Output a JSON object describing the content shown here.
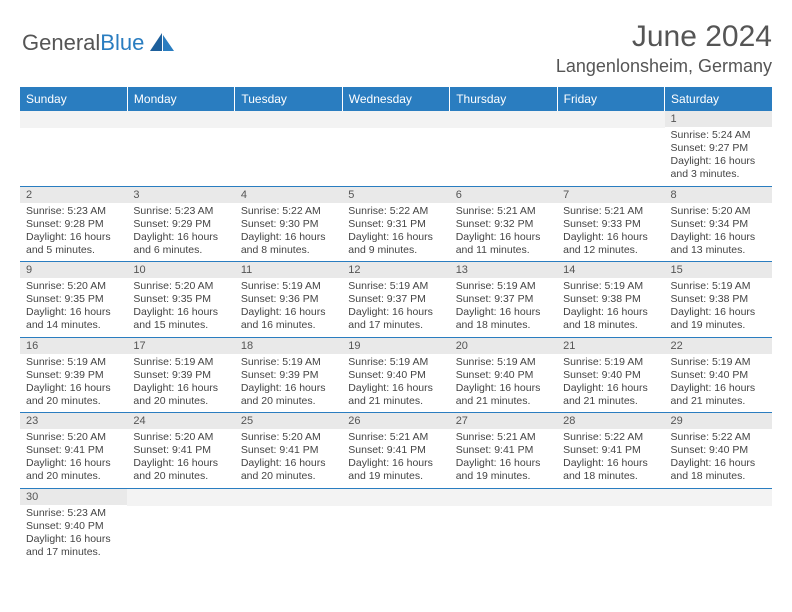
{
  "logo": {
    "text_a": "General",
    "text_b": "Blue"
  },
  "header": {
    "title": "June 2024",
    "location": "Langenlonsheim, Germany"
  },
  "columns": [
    "Sunday",
    "Monday",
    "Tuesday",
    "Wednesday",
    "Thursday",
    "Friday",
    "Saturday"
  ],
  "colors": {
    "header_bg": "#2a7dc0",
    "header_text": "#ffffff",
    "daynum_bg": "#e9e9e9",
    "row_border": "#2a7dc0",
    "body_text": "#444444"
  },
  "weeks": [
    [
      {
        "empty": true
      },
      {
        "empty": true
      },
      {
        "empty": true
      },
      {
        "empty": true
      },
      {
        "empty": true
      },
      {
        "empty": true
      },
      {
        "day": "1",
        "sunrise": "Sunrise: 5:24 AM",
        "sunset": "Sunset: 9:27 PM",
        "daylight": "Daylight: 16 hours and 3 minutes."
      }
    ],
    [
      {
        "day": "2",
        "sunrise": "Sunrise: 5:23 AM",
        "sunset": "Sunset: 9:28 PM",
        "daylight": "Daylight: 16 hours and 5 minutes."
      },
      {
        "day": "3",
        "sunrise": "Sunrise: 5:23 AM",
        "sunset": "Sunset: 9:29 PM",
        "daylight": "Daylight: 16 hours and 6 minutes."
      },
      {
        "day": "4",
        "sunrise": "Sunrise: 5:22 AM",
        "sunset": "Sunset: 9:30 PM",
        "daylight": "Daylight: 16 hours and 8 minutes."
      },
      {
        "day": "5",
        "sunrise": "Sunrise: 5:22 AM",
        "sunset": "Sunset: 9:31 PM",
        "daylight": "Daylight: 16 hours and 9 minutes."
      },
      {
        "day": "6",
        "sunrise": "Sunrise: 5:21 AM",
        "sunset": "Sunset: 9:32 PM",
        "daylight": "Daylight: 16 hours and 11 minutes."
      },
      {
        "day": "7",
        "sunrise": "Sunrise: 5:21 AM",
        "sunset": "Sunset: 9:33 PM",
        "daylight": "Daylight: 16 hours and 12 minutes."
      },
      {
        "day": "8",
        "sunrise": "Sunrise: 5:20 AM",
        "sunset": "Sunset: 9:34 PM",
        "daylight": "Daylight: 16 hours and 13 minutes."
      }
    ],
    [
      {
        "day": "9",
        "sunrise": "Sunrise: 5:20 AM",
        "sunset": "Sunset: 9:35 PM",
        "daylight": "Daylight: 16 hours and 14 minutes."
      },
      {
        "day": "10",
        "sunrise": "Sunrise: 5:20 AM",
        "sunset": "Sunset: 9:35 PM",
        "daylight": "Daylight: 16 hours and 15 minutes."
      },
      {
        "day": "11",
        "sunrise": "Sunrise: 5:19 AM",
        "sunset": "Sunset: 9:36 PM",
        "daylight": "Daylight: 16 hours and 16 minutes."
      },
      {
        "day": "12",
        "sunrise": "Sunrise: 5:19 AM",
        "sunset": "Sunset: 9:37 PM",
        "daylight": "Daylight: 16 hours and 17 minutes."
      },
      {
        "day": "13",
        "sunrise": "Sunrise: 5:19 AM",
        "sunset": "Sunset: 9:37 PM",
        "daylight": "Daylight: 16 hours and 18 minutes."
      },
      {
        "day": "14",
        "sunrise": "Sunrise: 5:19 AM",
        "sunset": "Sunset: 9:38 PM",
        "daylight": "Daylight: 16 hours and 18 minutes."
      },
      {
        "day": "15",
        "sunrise": "Sunrise: 5:19 AM",
        "sunset": "Sunset: 9:38 PM",
        "daylight": "Daylight: 16 hours and 19 minutes."
      }
    ],
    [
      {
        "day": "16",
        "sunrise": "Sunrise: 5:19 AM",
        "sunset": "Sunset: 9:39 PM",
        "daylight": "Daylight: 16 hours and 20 minutes."
      },
      {
        "day": "17",
        "sunrise": "Sunrise: 5:19 AM",
        "sunset": "Sunset: 9:39 PM",
        "daylight": "Daylight: 16 hours and 20 minutes."
      },
      {
        "day": "18",
        "sunrise": "Sunrise: 5:19 AM",
        "sunset": "Sunset: 9:39 PM",
        "daylight": "Daylight: 16 hours and 20 minutes."
      },
      {
        "day": "19",
        "sunrise": "Sunrise: 5:19 AM",
        "sunset": "Sunset: 9:40 PM",
        "daylight": "Daylight: 16 hours and 21 minutes."
      },
      {
        "day": "20",
        "sunrise": "Sunrise: 5:19 AM",
        "sunset": "Sunset: 9:40 PM",
        "daylight": "Daylight: 16 hours and 21 minutes."
      },
      {
        "day": "21",
        "sunrise": "Sunrise: 5:19 AM",
        "sunset": "Sunset: 9:40 PM",
        "daylight": "Daylight: 16 hours and 21 minutes."
      },
      {
        "day": "22",
        "sunrise": "Sunrise: 5:19 AM",
        "sunset": "Sunset: 9:40 PM",
        "daylight": "Daylight: 16 hours and 21 minutes."
      }
    ],
    [
      {
        "day": "23",
        "sunrise": "Sunrise: 5:20 AM",
        "sunset": "Sunset: 9:41 PM",
        "daylight": "Daylight: 16 hours and 20 minutes."
      },
      {
        "day": "24",
        "sunrise": "Sunrise: 5:20 AM",
        "sunset": "Sunset: 9:41 PM",
        "daylight": "Daylight: 16 hours and 20 minutes."
      },
      {
        "day": "25",
        "sunrise": "Sunrise: 5:20 AM",
        "sunset": "Sunset: 9:41 PM",
        "daylight": "Daylight: 16 hours and 20 minutes."
      },
      {
        "day": "26",
        "sunrise": "Sunrise: 5:21 AM",
        "sunset": "Sunset: 9:41 PM",
        "daylight": "Daylight: 16 hours and 19 minutes."
      },
      {
        "day": "27",
        "sunrise": "Sunrise: 5:21 AM",
        "sunset": "Sunset: 9:41 PM",
        "daylight": "Daylight: 16 hours and 19 minutes."
      },
      {
        "day": "28",
        "sunrise": "Sunrise: 5:22 AM",
        "sunset": "Sunset: 9:41 PM",
        "daylight": "Daylight: 16 hours and 18 minutes."
      },
      {
        "day": "29",
        "sunrise": "Sunrise: 5:22 AM",
        "sunset": "Sunset: 9:40 PM",
        "daylight": "Daylight: 16 hours and 18 minutes."
      }
    ],
    [
      {
        "day": "30",
        "sunrise": "Sunrise: 5:23 AM",
        "sunset": "Sunset: 9:40 PM",
        "daylight": "Daylight: 16 hours and 17 minutes."
      },
      {
        "empty": true
      },
      {
        "empty": true
      },
      {
        "empty": true
      },
      {
        "empty": true
      },
      {
        "empty": true
      },
      {
        "empty": true
      }
    ]
  ]
}
